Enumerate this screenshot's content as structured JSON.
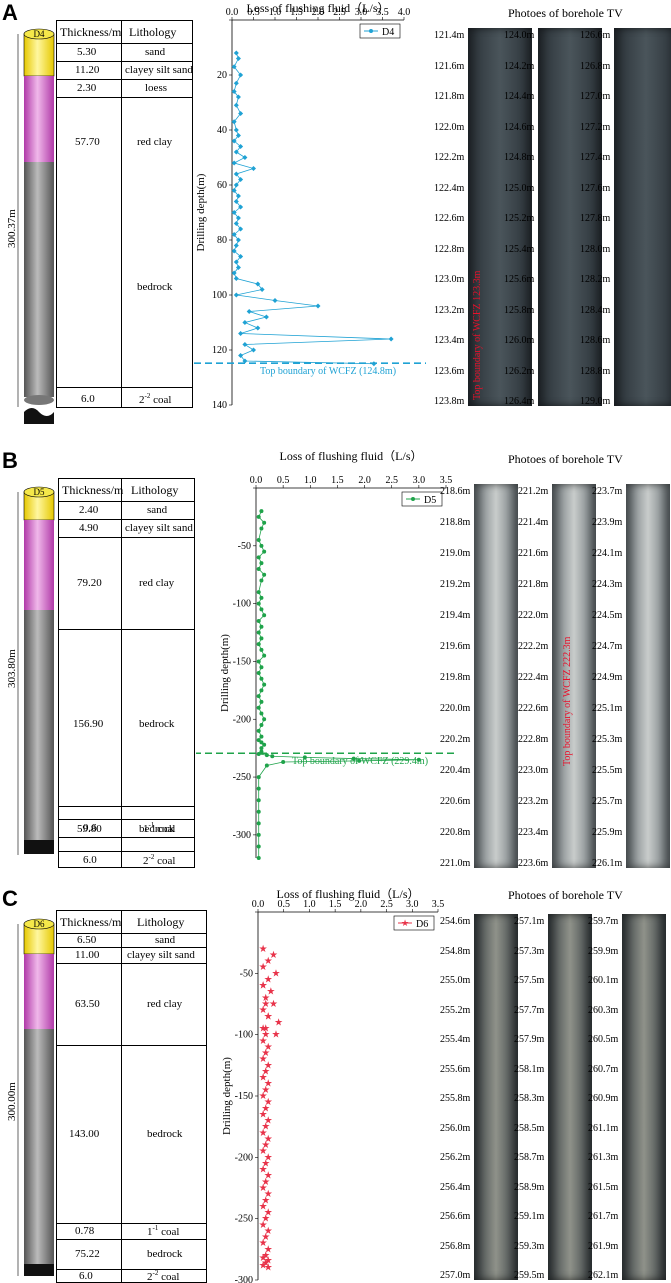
{
  "panels": [
    {
      "label": "A",
      "borehole": "D4",
      "total_depth": "300.37m",
      "header": {
        "thickness": "Thickness/m",
        "lithology": "Lithology"
      },
      "layers": [
        {
          "thickness": "5.30",
          "lithology": "sand"
        },
        {
          "thickness": "11.20",
          "lithology": "clayey silt sand"
        },
        {
          "thickness": "2.30",
          "lithology": "loess"
        },
        {
          "thickness": "57.70",
          "lithology": "red clay"
        },
        {
          "thickness": "",
          "lithology": "bedrock"
        },
        {
          "thickness": "6.0",
          "lithology": "2-2 coal"
        }
      ],
      "tv_title": "Photoes of borehole TV",
      "tv_strips": [
        [
          "121.4m",
          "121.6m",
          "121.8m",
          "122.0m",
          "122.2m",
          "122.4m",
          "122.6m",
          "122.8m",
          "123.0m",
          "123.2m",
          "123.4m",
          "123.6m",
          "123.8m"
        ],
        [
          "124.0m",
          "124.2m",
          "124.4m",
          "124.6m",
          "124.8m",
          "125.0m",
          "125.2m",
          "125.4m",
          "125.6m",
          "125.8m",
          "126.0m",
          "126.2m",
          "126.4m"
        ],
        [
          "126.6m",
          "126.8m",
          "127.0m",
          "127.2m",
          "127.4m",
          "127.6m",
          "127.8m",
          "128.0m",
          "128.2m",
          "128.4m",
          "128.6m",
          "128.8m",
          "129.0m"
        ]
      ],
      "tv_annotation": "Top boundary of WCFZ 123.3m",
      "colors": {
        "series": "#1fa2d4",
        "boundary": "#1fa2d4"
      }
    },
    {
      "label": "B",
      "borehole": "D5",
      "total_depth": "303.80m",
      "header": {
        "thickness": "Thickness/m",
        "lithology": "Lithology"
      },
      "layers": [
        {
          "thickness": "2.40",
          "lithology": "sand"
        },
        {
          "thickness": "4.90",
          "lithology": "clayey silt sand"
        },
        {
          "thickness": "79.20",
          "lithology": "red clay"
        },
        {
          "thickness": "156.90",
          "lithology": "bedrock"
        },
        {
          "thickness": "0.6",
          "lithology": "1-1 coal"
        },
        {
          "thickness": "59.80",
          "lithology": "bedrock"
        },
        {
          "thickness": "6.0",
          "lithology": "2-2 coal"
        }
      ],
      "tv_title": "Photoes of borehole TV",
      "tv_strips": [
        [
          "218.6m",
          "218.8m",
          "219.0m",
          "219.2m",
          "219.4m",
          "219.6m",
          "219.8m",
          "220.0m",
          "220.2m",
          "220.4m",
          "220.6m",
          "220.8m",
          "221.0m"
        ],
        [
          "221.2m",
          "221.4m",
          "221.6m",
          "221.8m",
          "222.0m",
          "222.2m",
          "222.4m",
          "222.6m",
          "222.8m",
          "223.0m",
          "223.2m",
          "223.4m",
          "223.6m"
        ],
        [
          "223.7m",
          "223.9m",
          "224.1m",
          "224.3m",
          "224.5m",
          "224.7m",
          "224.9m",
          "225.1m",
          "225.3m",
          "225.5m",
          "225.7m",
          "225.9m",
          "226.1m"
        ]
      ],
      "tv_annotation": "Top boundary of WCFZ 222.3m",
      "colors": {
        "series": "#1fa34a",
        "boundary": "#1fa34a"
      }
    },
    {
      "label": "C",
      "borehole": "D6",
      "total_depth": "300.00m",
      "header": {
        "thickness": "Thickness/m",
        "lithology": "Lithology"
      },
      "layers": [
        {
          "thickness": "6.50",
          "lithology": "sand"
        },
        {
          "thickness": "11.00",
          "lithology": "clayey silt sand"
        },
        {
          "thickness": "63.50",
          "lithology": "red clay"
        },
        {
          "thickness": "143.00",
          "lithology": "bedrock"
        },
        {
          "thickness": "0.78",
          "lithology": "1-1 coal"
        },
        {
          "thickness": "75.22",
          "lithology": "bedrock"
        },
        {
          "thickness": "6.0",
          "lithology": "2-2 coal"
        }
      ],
      "tv_title": "Photoes of borehole TV",
      "tv_strips": [
        [
          "254.6m",
          "254.8m",
          "255.0m",
          "255.2m",
          "255.4m",
          "255.6m",
          "255.8m",
          "256.0m",
          "256.2m",
          "256.4m",
          "256.6m",
          "256.8m",
          "257.0m"
        ],
        [
          "257.1m",
          "257.3m",
          "257.5m",
          "257.7m",
          "257.9m",
          "258.1m",
          "258.3m",
          "258.5m",
          "258.7m",
          "258.9m",
          "259.1m",
          "259.3m",
          "259.5m"
        ],
        [
          "259.7m",
          "259.9m",
          "260.1m",
          "260.3m",
          "260.5m",
          "260.7m",
          "260.9m",
          "261.1m",
          "261.3m",
          "261.5m",
          "261.7m",
          "261.9m",
          "262.1m"
        ]
      ],
      "tv_annotation": "",
      "colors": {
        "series": "#e8334a",
        "boundary": ""
      }
    }
  ],
  "chart_data": [
    {
      "type": "line",
      "title": "Loss of flushing fluid（L/s）",
      "xlabel": "Loss of flushing fluid（L/s）",
      "ylabel": "Drilling depth(m)",
      "xlim": [
        0,
        4.0
      ],
      "xticks": [
        "0.0",
        "0.5",
        "1.0",
        "1.5",
        "2.0",
        "2.5",
        "3.0",
        "3.5",
        "4.0"
      ],
      "ylim": [
        0,
        140
      ],
      "yticks": [
        "",
        "20",
        "40",
        "60",
        "80",
        "100",
        "120",
        "140"
      ],
      "legend": "top-right",
      "series": [
        {
          "name": "D4",
          "x": [
            0.1,
            0.15,
            0.05,
            0.2,
            0.1,
            0.05,
            0.15,
            0.1,
            0.2,
            0.05,
            0.1,
            0.15,
            0.05,
            0.2,
            0.1,
            0.3,
            0.05,
            0.5,
            0.1,
            0.2,
            0.1,
            0.05,
            0.15,
            0.1,
            0.2,
            0.05,
            0.15,
            0.1,
            0.2,
            0.05,
            0.15,
            0.1,
            0.05,
            0.2,
            0.1,
            0.15,
            0.05,
            0.1,
            0.6,
            0.7,
            0.1,
            1.0,
            2.0,
            0.4,
            0.8,
            0.3,
            0.6,
            0.2,
            3.7,
            0.3,
            0.5,
            0.2,
            0.3,
            3.3
          ],
          "y": [
            12,
            14,
            17,
            20,
            23,
            26,
            28,
            31,
            34,
            37,
            40,
            42,
            44,
            46,
            48,
            50,
            52,
            54,
            56,
            58,
            60,
            62,
            64,
            66,
            68,
            70,
            72,
            74,
            76,
            78,
            80,
            82,
            84,
            86,
            88,
            90,
            92,
            94,
            96,
            98,
            100,
            102,
            104,
            106,
            108,
            110,
            112,
            114,
            116,
            118,
            120,
            122,
            124,
            125
          ]
        }
      ],
      "annotation": "Top boundary of WCFZ (124.8m)"
    },
    {
      "type": "line",
      "title": "Loss of flushing fluid（L/s）",
      "xlabel": "Loss of flushing fluid（L/s）",
      "ylabel": "Drilling depth(m)",
      "xlim": [
        0,
        3.5
      ],
      "xticks": [
        "0.0",
        "0.5",
        "1.0",
        "1.5",
        "2.0",
        "2.5",
        "3.0",
        "3.5"
      ],
      "ylim": [
        0,
        320
      ],
      "yticks": [
        "",
        "-50",
        "-100",
        "-150",
        "-200",
        "-250",
        "-300"
      ],
      "legend": "top-right",
      "series": [
        {
          "name": "D5",
          "x": [
            0.1,
            0.05,
            0.15,
            0.1,
            0.05,
            0.1,
            0.15,
            0.05,
            0.1,
            0.05,
            0.15,
            0.1,
            0.05,
            0.1,
            0.05,
            0.1,
            0.15,
            0.05,
            0.1,
            0.05,
            0.1,
            0.05,
            0.1,
            0.15,
            0.05,
            0.1,
            0.05,
            0.1,
            0.15,
            0.1,
            0.05,
            0.1,
            0.05,
            0.1,
            0.15,
            0.1,
            0.05,
            0.1,
            0.05,
            0.1,
            0.15,
            0.1,
            0.1,
            0.05,
            0.2,
            0.3,
            0.9,
            1.8,
            3.0,
            1.9,
            0.5,
            0.2,
            0.05,
            0.05,
            0.05,
            0.05,
            0.05,
            0.05,
            0.05,
            0.05
          ],
          "y": [
            -20,
            -25,
            -30,
            -35,
            -45,
            -50,
            -55,
            -60,
            -65,
            -70,
            -75,
            -80,
            -90,
            -95,
            -100,
            -105,
            -110,
            -115,
            -120,
            -125,
            -130,
            -135,
            -140,
            -145,
            -150,
            -155,
            -160,
            -165,
            -170,
            -175,
            -180,
            -185,
            -190,
            -195,
            -200,
            -205,
            -210,
            -215,
            -218,
            -220,
            -222,
            -225,
            -228,
            -230,
            -231,
            -232,
            -233,
            -234,
            -235,
            -236,
            -237,
            -240,
            -250,
            -260,
            -270,
            -280,
            -290,
            -300,
            -310,
            -320
          ]
        }
      ],
      "annotation": "Top boundary of WCFZ (229.4m)"
    },
    {
      "type": "line",
      "title": "Loss of flushing fluid（L/s）",
      "xlabel": "Loss of flushing fluid（L/s）",
      "ylabel": "Drilling depth(m)",
      "xlim": [
        0,
        3.5
      ],
      "xticks": [
        "0.0",
        "0.5",
        "1.0",
        "1.5",
        "2.0",
        "2.5",
        "3.0",
        "3.5"
      ],
      "ylim": [
        0,
        300
      ],
      "yticks": [
        "",
        "-50",
        "-100",
        "-150",
        "-200",
        "-250",
        "-300"
      ],
      "legend": "top-right",
      "series": [
        {
          "name": "D6",
          "x": [
            0.1,
            0.3,
            0.2,
            0.1,
            0.35,
            0.2,
            0.1,
            0.25,
            0.15,
            0.3,
            0.1,
            0.2,
            0.4,
            0.15,
            0.35,
            0.1,
            0.2,
            0.15,
            0.1,
            0.2,
            0.15,
            0.1,
            0.2,
            0.15,
            0.1,
            0.2,
            0.15,
            0.1,
            0.2,
            0.15,
            0.1,
            0.2,
            0.15,
            0.1,
            0.2,
            0.15,
            0.1,
            0.2,
            0.15,
            0.1,
            0.2,
            0.15,
            0.1,
            0.2,
            0.15,
            0.1,
            0.2,
            0.15,
            0.1,
            0.2,
            0.15,
            0.1,
            0.2,
            0.15,
            0.1,
            0.2,
            0.15,
            0.1,
            0.2,
            0.15,
            0.1
          ],
          "y": [
            -30,
            -35,
            -40,
            -45,
            -50,
            -55,
            -60,
            -65,
            -70,
            -75,
            -80,
            -85,
            -90,
            -95,
            -100,
            -105,
            -110,
            -115,
            -120,
            -125,
            -130,
            -135,
            -140,
            -145,
            -150,
            -155,
            -160,
            -165,
            -170,
            -175,
            -180,
            -185,
            -190,
            -195,
            -200,
            -205,
            -210,
            -215,
            -220,
            -225,
            -230,
            -235,
            -240,
            -245,
            -250,
            -255,
            -260,
            -265,
            -270,
            -275,
            -280,
            -282,
            -284,
            -286,
            -288,
            -290,
            -100,
            -95,
            -85,
            -75,
            -60
          ]
        }
      ],
      "annotation": ""
    }
  ]
}
